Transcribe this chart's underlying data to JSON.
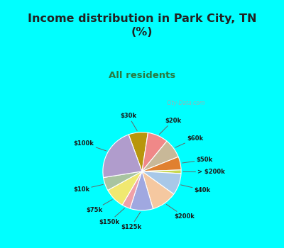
{
  "title": "Income distribution in Park City, TN\n(%)",
  "subtitle": "All residents",
  "labels": [
    "$30k",
    "$100k",
    "$10k",
    "$75k",
    "$150k",
    "$125k",
    "$200k",
    "$40k",
    "> $200k",
    "$50k",
    "$60k",
    "$20k"
  ],
  "sizes": [
    8.0,
    22.0,
    5.5,
    8.5,
    3.5,
    9.5,
    10.5,
    9.0,
    1.5,
    5.5,
    8.0,
    8.5
  ],
  "colors": [
    "#b8960c",
    "#b09ccc",
    "#a8c4a0",
    "#f0e870",
    "#f0a0a8",
    "#a0a8e0",
    "#f5c8a0",
    "#a8c8e8",
    "#c8d850",
    "#e08030",
    "#c8b898",
    "#f08888"
  ],
  "background_top": "#00ffff",
  "background_chart_gradient_top": "#e0f5f5",
  "background_chart_gradient_bottom": "#d0eed0",
  "title_color": "#222222",
  "subtitle_color": "#2a7a40",
  "startangle": 90,
  "label_color": "#1a1a1a",
  "line_color": "#888888"
}
